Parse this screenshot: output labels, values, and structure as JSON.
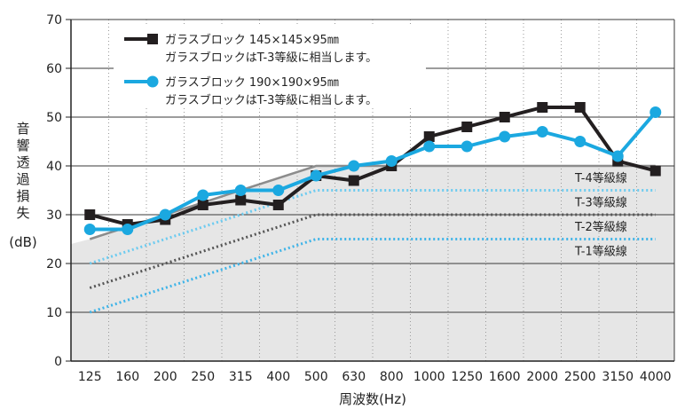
{
  "chart_data": {
    "type": "line",
    "xlabel": "周波数(Hz)",
    "ylabel": "音響透過損失(dB)",
    "ylabel_vertical": "音響透過損失",
    "ylabel_unit": "(dB)",
    "ylim": [
      0,
      70
    ],
    "yticks": [
      0,
      10,
      20,
      30,
      40,
      50,
      60,
      70
    ],
    "categories": [
      "125",
      "160",
      "200",
      "250",
      "315",
      "400",
      "500",
      "630",
      "800",
      "1000",
      "1250",
      "1600",
      "2000",
      "2500",
      "3150",
      "4000"
    ],
    "grid": true,
    "legend_position": "top-left",
    "series": [
      {
        "name": "ガラスブロック 145×145×95㎜",
        "note": "ガラスブロックはT-3等級に相当します。",
        "marker": "square",
        "color": "#231f20",
        "values": [
          30,
          28,
          29,
          32,
          33,
          32,
          38,
          37,
          40,
          46,
          48,
          50,
          52,
          52,
          41,
          39
        ]
      },
      {
        "name": "ガラスブロック 190×190×95㎜",
        "note": "ガラスブロックはT-3等級に相当します。",
        "marker": "circle",
        "color": "#1ba8e0",
        "values": [
          27,
          27,
          30,
          34,
          35,
          35,
          38,
          40,
          41,
          44,
          44,
          46,
          47,
          45,
          42,
          51
        ]
      }
    ],
    "reference_lines": [
      {
        "name": "T-4等級線",
        "color": "#8c8c8c",
        "style": "solid",
        "start": 25,
        "plateau": 40
      },
      {
        "name": "T-3等級線",
        "color": "#6ccbf0",
        "style": "dotted",
        "start": 20,
        "plateau": 35
      },
      {
        "name": "T-2等級線",
        "color": "#555555",
        "style": "dotted",
        "start": 15,
        "plateau": 30
      },
      {
        "name": "T-1等級線",
        "color": "#3fb4e8",
        "style": "dotted",
        "start": 10,
        "plateau": 25
      }
    ]
  }
}
